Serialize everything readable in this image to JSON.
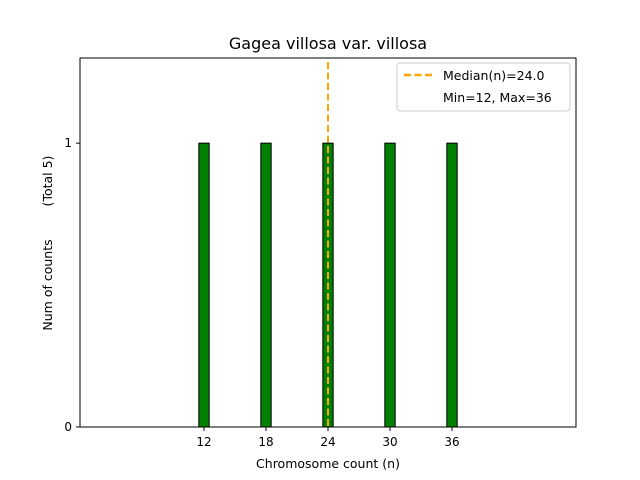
{
  "chart_data": {
    "type": "bar",
    "title": "Gagea villosa var. villosa",
    "xlabel": "Chromosome count (n)",
    "ylabel": "Num of counts",
    "ylabel_secondary": "(Total 5)",
    "x": [
      12,
      18,
      24,
      30,
      36
    ],
    "values": [
      1,
      1,
      1,
      1,
      1
    ],
    "xticks": [
      12,
      18,
      24,
      30,
      36
    ],
    "yticks": [
      0,
      1
    ],
    "xlim": [
      0,
      48
    ],
    "ylim": [
      0,
      1.3
    ],
    "bar_width": 1,
    "grid": false,
    "bar_color": "#008000",
    "bar_edge_color": "#000000",
    "median": {
      "value": 24.0,
      "label": "Median(n)=24.0",
      "color": "#FFA500",
      "style": "dashed"
    },
    "legend": {
      "placement": "top-right",
      "entries": [
        "Median(n)=24.0",
        "Min=12, Max=36"
      ]
    }
  }
}
